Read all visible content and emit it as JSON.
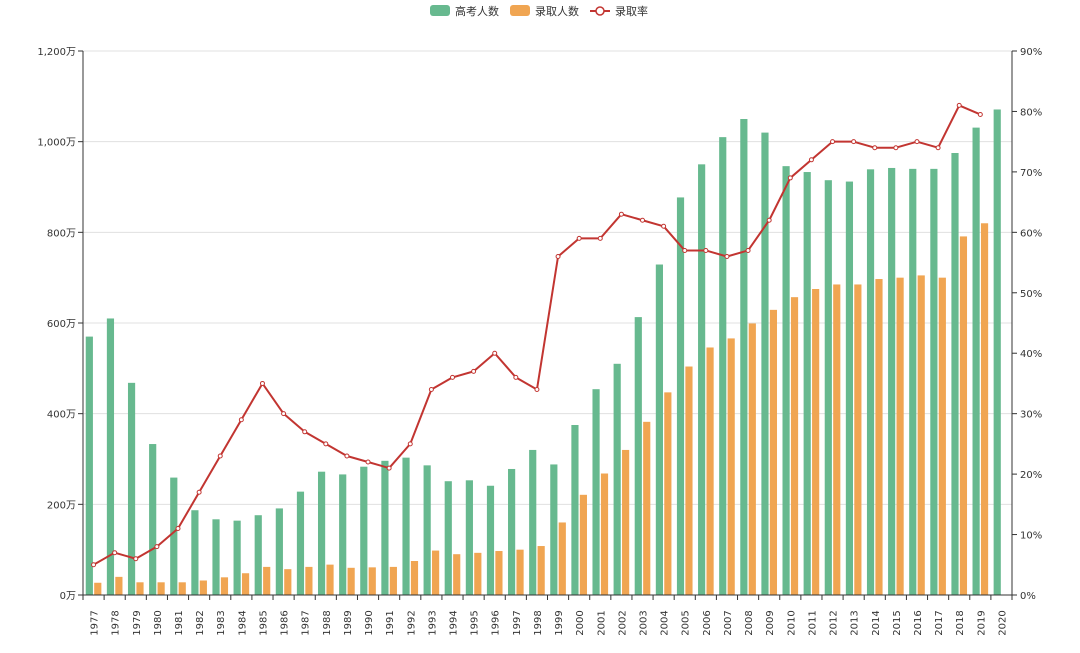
{
  "chart_data": {
    "type": "bar",
    "categories": [
      "1977",
      "1978",
      "1979",
      "1980",
      "1981",
      "1982",
      "1983",
      "1984",
      "1985",
      "1986",
      "1987",
      "1988",
      "1989",
      "1990",
      "1991",
      "1992",
      "1993",
      "1994",
      "1995",
      "1996",
      "1997",
      "1998",
      "1999",
      "2000",
      "2001",
      "2002",
      "2003",
      "2004",
      "2005",
      "2006",
      "2007",
      "2008",
      "2009",
      "2010",
      "2011",
      "2012",
      "2013",
      "2014",
      "2015",
      "2016",
      "2017",
      "2018",
      "2019",
      "2020"
    ],
    "series": [
      {
        "name": "高考人数",
        "type": "bar",
        "axis": "left",
        "color": "#67b98f",
        "values": [
          570,
          610,
          468,
          333,
          259,
          187,
          167,
          164,
          176,
          191,
          228,
          272,
          266,
          283,
          296,
          303,
          286,
          251,
          253,
          241,
          278,
          320,
          288,
          375,
          454,
          510,
          613,
          729,
          877,
          950,
          1010,
          1050,
          1020,
          946,
          933,
          915,
          912,
          939,
          942,
          940,
          940,
          975,
          1031,
          1071
        ]
      },
      {
        "name": "录取人数",
        "type": "bar",
        "axis": "left",
        "color": "#f0a552",
        "values": [
          27,
          40,
          28,
          28,
          28,
          32,
          39,
          48,
          62,
          57,
          62,
          67,
          60,
          61,
          62,
          75,
          98,
          90,
          93,
          97,
          100,
          108,
          160,
          221,
          268,
          320,
          382,
          447,
          504,
          546,
          566,
          599,
          629,
          657,
          675,
          685,
          685,
          697,
          700,
          705,
          700,
          791,
          820,
          null
        ]
      },
      {
        "name": "录取率",
        "type": "line",
        "axis": "right",
        "color": "#c23531",
        "values": [
          5,
          7,
          6,
          8,
          11,
          17,
          23,
          29,
          35,
          30,
          27,
          25,
          23,
          22,
          21,
          25,
          34,
          36,
          37,
          40,
          36,
          34,
          56,
          59,
          59,
          63,
          62,
          61,
          57,
          57,
          56,
          57,
          62,
          69,
          72,
          75,
          75,
          74,
          74,
          75,
          74,
          81,
          79.5,
          null
        ]
      }
    ],
    "y_left": {
      "min": 0,
      "max": 1200,
      "ticks": [
        0,
        200,
        400,
        600,
        800,
        1000,
        1200
      ],
      "tick_labels": [
        "0万",
        "200万",
        "400万",
        "600万",
        "800万",
        "1,000万",
        "1,200万"
      ]
    },
    "y_right": {
      "min": 0,
      "max": 90,
      "ticks": [
        0,
        10,
        20,
        30,
        40,
        50,
        60,
        70,
        80,
        90
      ],
      "tick_labels": [
        "0%",
        "10%",
        "20%",
        "30%",
        "40%",
        "50%",
        "60%",
        "70%",
        "80%",
        "90%"
      ]
    },
    "legend": {
      "position": "top-center",
      "items": [
        "高考人数",
        "录取人数",
        "录取率"
      ]
    },
    "grid": true
  }
}
